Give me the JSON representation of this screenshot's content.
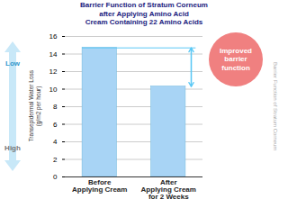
{
  "chart_data": {
    "type": "bar",
    "title": "Barrier Function of Stratum Corneum\nafter Applying Amino Acid\nCream Containing 22 Amino Acids",
    "categories": [
      "Before\nApplying Cream",
      "After\nApplying Cream\nfor 2 Weeks"
    ],
    "values": [
      14.7,
      10.3
    ],
    "color": "#a8d4f5",
    "ylabel": "Transepidermal Water Loss\n(g/m2 per hour)",
    "ylim": [
      0,
      16
    ],
    "yticks": [
      0,
      2,
      4,
      6,
      8,
      10,
      12,
      14,
      16
    ],
    "grid": true,
    "annotations": [
      {
        "text": "Low",
        "color": "#3399cc"
      },
      {
        "text": "High",
        "color": "#777777"
      },
      {
        "text": "Barrier Function of Stratum Corneum",
        "color": "#aaaaaa"
      },
      {
        "text": "Improved\nbarrier\nfunction",
        "color": "#f08080"
      }
    ]
  }
}
